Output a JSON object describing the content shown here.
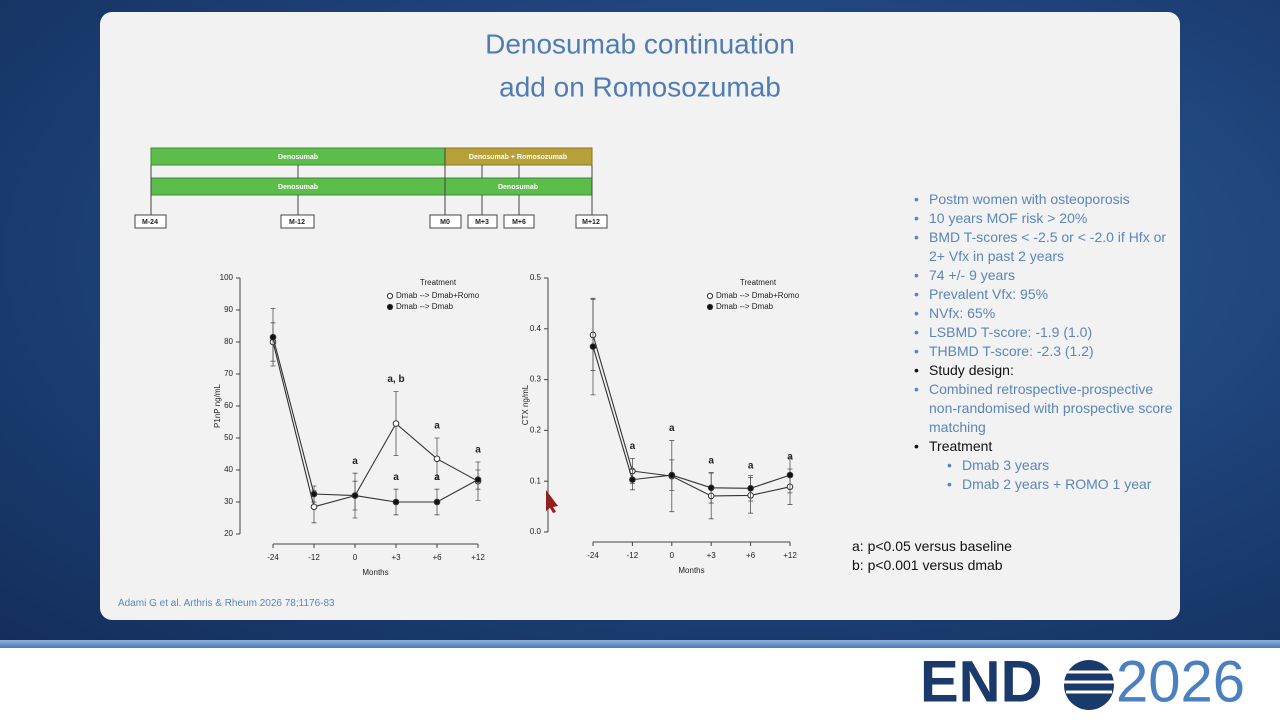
{
  "title": [
    "Denosumab continuation",
    "add on Romosozumab"
  ],
  "timeline": {
    "row1": [
      "Denosumab",
      "Denosumab + Romosozumab"
    ],
    "row2": [
      "Denosumab",
      "Denosumab"
    ],
    "milestones": [
      "M-24",
      "M-12",
      "M0",
      "M+3",
      "M+6",
      "M+12"
    ]
  },
  "key_points": [
    "Postm women with osteoporosis",
    "10 years MOF risk > 20%",
    "BMD T-scores < -2.5 or < -2.0 if Hfx or 2+ Vfx in past 2 years",
    "74 +/- 9 years",
    "Prevalent Vfx: 95%",
    "NVfx: 65%",
    "LSBMD T-score: -1.9 (1.0)",
    "THBMD T-score: -2.3 (1.2)"
  ],
  "study_design": {
    "label": "Study design:",
    "items": [
      "Combined retrospective-prospective non-randomised with prospective score matching"
    ]
  },
  "treatment": {
    "label": "Treatment",
    "items": [
      "Dmab 3 years",
      "Dmab 2 years + ROMO 1 year"
    ]
  },
  "footnotes": [
    "a: p<0.05 versus baseline",
    "b: p<0.001 versus dmab"
  ],
  "citation": "Adami G et al. Arthris & Rheum 2026 78;1176-83",
  "logo": {
    "left": "END",
    "right": "2026"
  },
  "chart_data": [
    {
      "type": "line",
      "y_label": "P1nP ng/mL",
      "x_label": "Months",
      "legend_title": "Treatment",
      "categories": [
        "-24",
        "-12",
        "0",
        "+3",
        "+6",
        "+12"
      ],
      "ylim": [
        20,
        100
      ],
      "yticks": [
        20,
        30,
        40,
        50,
        60,
        70,
        80,
        90,
        100
      ],
      "series": [
        {
          "name": "Dmab --> Dmab+Romo",
          "color": "#333333",
          "marker_fill": "#ffffff",
          "values": [
            80,
            28.5,
            32,
            54.5,
            43.5,
            36.5
          ],
          "errors": [
            6,
            5,
            7,
            10,
            6.5,
            6
          ],
          "annotations": [
            null,
            null,
            "a",
            "a, b",
            "a",
            "a"
          ]
        },
        {
          "name": "Dmab --> Dmab",
          "color": "#333333",
          "marker_fill": "#111111",
          "values": [
            81.5,
            32.5,
            32,
            30,
            30,
            37
          ],
          "errors": [
            9,
            2.5,
            4.5,
            4,
            4,
            3
          ],
          "annotations": [
            null,
            null,
            null,
            "a",
            "a",
            null
          ]
        }
      ]
    },
    {
      "type": "line",
      "y_label": "CTX ng/mL",
      "x_label": "Months",
      "legend_title": "Treatment",
      "categories": [
        "-24",
        "-12",
        "0",
        "+3",
        "+6",
        "+12"
      ],
      "ylim": [
        0,
        0.5
      ],
      "yticks": [
        {
          "value": 0,
          "label": "0.0"
        },
        0.1,
        0.2,
        0.3,
        0.4,
        0.5
      ],
      "series": [
        {
          "name": "Dmab --> Dmab+Romo",
          "color": "#333333",
          "marker_fill": "#ffffff",
          "values": [
            0.388,
            0.12,
            0.11,
            0.071,
            0.072,
            0.089
          ],
          "errors": [
            0.07,
            0.025,
            0.07,
            0.045,
            0.035,
            0.035
          ],
          "annotations": [
            null,
            "a",
            "a",
            "a",
            "a",
            "a"
          ]
        },
        {
          "name": "Dmab --> Dmab",
          "color": "#333333",
          "marker_fill": "#111111",
          "values": [
            0.365,
            0.103,
            0.112,
            0.087,
            0.086,
            0.112
          ],
          "errors": [
            0.095,
            0.02,
            0.03,
            0.03,
            0.025,
            0.035
          ],
          "annotations": [
            null,
            null,
            null,
            null,
            null,
            null
          ]
        }
      ]
    }
  ]
}
